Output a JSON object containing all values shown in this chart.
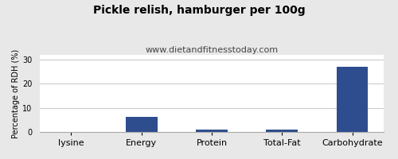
{
  "title": "Pickle relish, hamburger per 100g",
  "subtitle": "www.dietandfitnesstoday.com",
  "categories": [
    "lysine",
    "Energy",
    "Protein",
    "Total-Fat",
    "Carbohydrate"
  ],
  "values": [
    0,
    6.2,
    1.0,
    1.1,
    27.0
  ],
  "bar_color": "#2e4d8e",
  "ylabel": "Percentage of RDH (%)",
  "ylim": [
    0,
    32
  ],
  "yticks": [
    0,
    10,
    20,
    30
  ],
  "background_color": "#e8e8e8",
  "plot_bg_color": "#ffffff",
  "title_fontsize": 10,
  "subtitle_fontsize": 8,
  "ylabel_fontsize": 7,
  "xlabel_fontsize": 8,
  "grid_color": "#cccccc",
  "border_color": "#aaaaaa"
}
